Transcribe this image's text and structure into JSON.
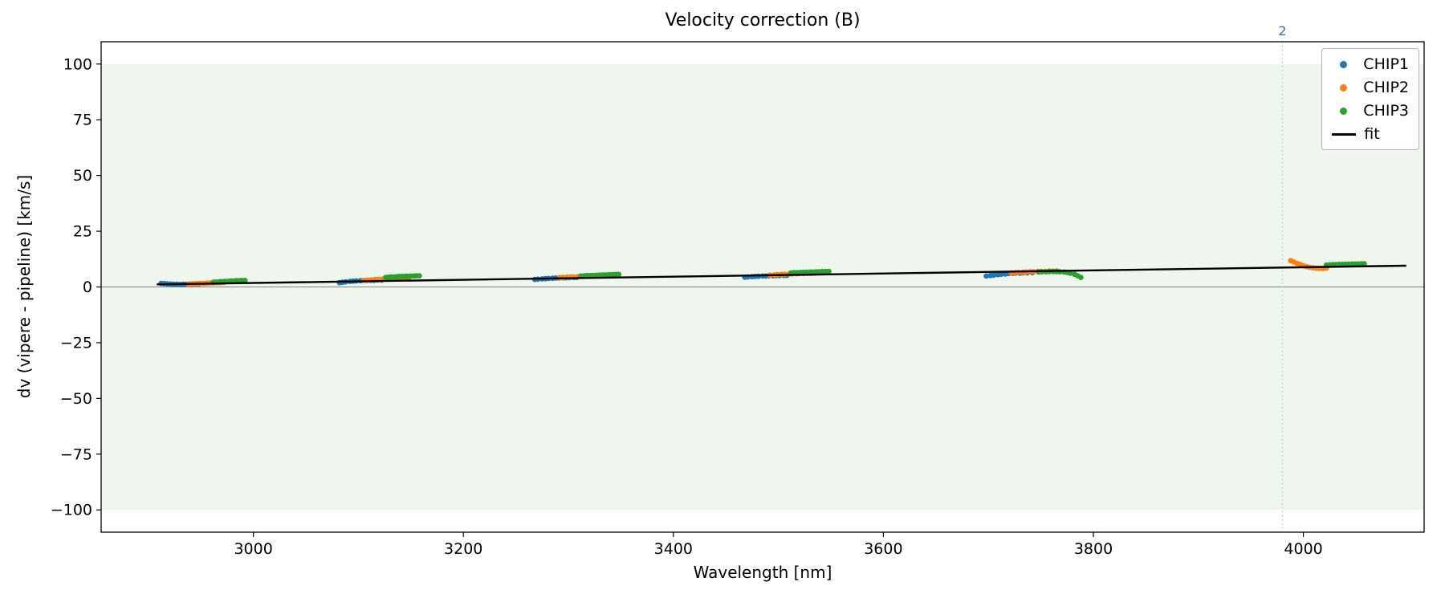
{
  "chart_data": {
    "type": "scatter",
    "title": "Velocity correction (B)",
    "xlabel": "Wavelength [nm]",
    "ylabel": "dv (vipere - pipeline) [km/s]",
    "xlim": [
      2855,
      4115
    ],
    "ylim": [
      -110,
      110
    ],
    "xticks": [
      3000,
      3200,
      3400,
      3600,
      3800,
      4000
    ],
    "yticks": [
      -100,
      -75,
      -50,
      -25,
      0,
      25,
      50,
      75,
      100
    ],
    "grid": false,
    "background_band": {
      "ymin": -100,
      "ymax": 100,
      "color": "#eef6ee"
    },
    "zero_line": {
      "y": 0,
      "color": "#808080"
    },
    "vline": {
      "x": 3980,
      "label": "2",
      "color": "#9ecae1",
      "label_color": "#1f77b4",
      "style": "dotted"
    },
    "legend": {
      "position": "upper right",
      "entries": [
        {
          "label": "CHIP1",
          "color": "#1f77b4",
          "marker": "dot"
        },
        {
          "label": "CHIP2",
          "color": "#ff7f0e",
          "marker": "dot"
        },
        {
          "label": "CHIP3",
          "color": "#2ca02c",
          "marker": "dot"
        },
        {
          "label": "fit",
          "color": "#000000",
          "marker": "line"
        }
      ]
    },
    "series": [
      {
        "name": "CHIP1",
        "color": "#1f77b4",
        "marker": "circle",
        "points": [
          [
            2912,
            1.6
          ],
          [
            2915,
            1.5
          ],
          [
            2918,
            1.4
          ],
          [
            2921,
            1.3
          ],
          [
            2924,
            1.2
          ],
          [
            2927,
            1.2
          ],
          [
            2930,
            1.1
          ],
          [
            2933,
            1.2
          ],
          [
            2936,
            1.2
          ],
          [
            2939,
            1.3
          ],
          [
            2942,
            1.3
          ],
          [
            2945,
            1.4
          ],
          [
            2948,
            1.4
          ],
          [
            3082,
            1.9
          ],
          [
            3085,
            2.1
          ],
          [
            3088,
            2.3
          ],
          [
            3092,
            2.5
          ],
          [
            3095,
            2.6
          ],
          [
            3098,
            2.7
          ],
          [
            3102,
            2.8
          ],
          [
            3105,
            2.9
          ],
          [
            3108,
            2.9
          ],
          [
            3112,
            3.0
          ],
          [
            3115,
            3.0
          ],
          [
            3118,
            3.1
          ],
          [
            3122,
            3.1
          ],
          [
            3268,
            3.4
          ],
          [
            3271,
            3.5
          ],
          [
            3275,
            3.6
          ],
          [
            3278,
            3.7
          ],
          [
            3281,
            3.8
          ],
          [
            3285,
            3.9
          ],
          [
            3288,
            4.0
          ],
          [
            3291,
            4.0
          ],
          [
            3295,
            4.1
          ],
          [
            3298,
            4.1
          ],
          [
            3301,
            4.2
          ],
          [
            3305,
            4.2
          ],
          [
            3308,
            4.3
          ],
          [
            3468,
            4.4
          ],
          [
            3471,
            4.5
          ],
          [
            3475,
            4.6
          ],
          [
            3478,
            4.7
          ],
          [
            3481,
            4.8
          ],
          [
            3485,
            4.9
          ],
          [
            3488,
            4.9
          ],
          [
            3491,
            5.0
          ],
          [
            3495,
            5.0
          ],
          [
            3498,
            5.1
          ],
          [
            3501,
            5.1
          ],
          [
            3505,
            5.2
          ],
          [
            3508,
            5.2
          ],
          [
            3698,
            4.9
          ],
          [
            3702,
            5.1
          ],
          [
            3705,
            5.3
          ],
          [
            3709,
            5.5
          ],
          [
            3712,
            5.7
          ],
          [
            3716,
            5.8
          ],
          [
            3719,
            6.0
          ],
          [
            3723,
            6.1
          ],
          [
            3726,
            6.2
          ],
          [
            3730,
            6.2
          ],
          [
            3733,
            6.3
          ],
          [
            3737,
            6.3
          ],
          [
            3742,
            6.4
          ]
        ]
      },
      {
        "name": "CHIP2",
        "color": "#ff7f0e",
        "marker": "circle",
        "points": [
          [
            2938,
            1.2
          ],
          [
            2941,
            1.3
          ],
          [
            2944,
            1.4
          ],
          [
            2947,
            1.5
          ],
          [
            2950,
            1.6
          ],
          [
            2953,
            1.6
          ],
          [
            2956,
            1.7
          ],
          [
            2959,
            1.8
          ],
          [
            2962,
            1.8
          ],
          [
            2965,
            1.9
          ],
          [
            2968,
            1.9
          ],
          [
            2970,
            2.0
          ],
          [
            2972,
            2.0
          ],
          [
            3105,
            2.9
          ],
          [
            3109,
            3.0
          ],
          [
            3112,
            3.2
          ],
          [
            3116,
            3.3
          ],
          [
            3119,
            3.4
          ],
          [
            3123,
            3.5
          ],
          [
            3126,
            3.6
          ],
          [
            3130,
            3.7
          ],
          [
            3133,
            3.7
          ],
          [
            3137,
            3.8
          ],
          [
            3141,
            3.9
          ],
          [
            3144,
            3.9
          ],
          [
            3148,
            4.0
          ],
          [
            3292,
            4.2
          ],
          [
            3295,
            4.3
          ],
          [
            3299,
            4.4
          ],
          [
            3302,
            4.5
          ],
          [
            3305,
            4.5
          ],
          [
            3309,
            4.6
          ],
          [
            3312,
            4.7
          ],
          [
            3315,
            4.7
          ],
          [
            3319,
            4.8
          ],
          [
            3322,
            4.8
          ],
          [
            3325,
            4.9
          ],
          [
            3329,
            4.9
          ],
          [
            3332,
            5.0
          ],
          [
            3492,
            5.3
          ],
          [
            3496,
            5.4
          ],
          [
            3499,
            5.5
          ],
          [
            3503,
            5.6
          ],
          [
            3506,
            5.7
          ],
          [
            3510,
            5.8
          ],
          [
            3513,
            5.8
          ],
          [
            3517,
            5.9
          ],
          [
            3520,
            6.0
          ],
          [
            3524,
            6.0
          ],
          [
            3528,
            6.1
          ],
          [
            3531,
            6.1
          ],
          [
            3535,
            6.2
          ],
          [
            3722,
            6.3
          ],
          [
            3726,
            6.4
          ],
          [
            3729,
            6.5
          ],
          [
            3733,
            6.6
          ],
          [
            3736,
            6.7
          ],
          [
            3740,
            6.8
          ],
          [
            3743,
            6.8
          ],
          [
            3747,
            6.9
          ],
          [
            3750,
            7.0
          ],
          [
            3754,
            7.0
          ],
          [
            3758,
            7.1
          ],
          [
            3761,
            7.1
          ],
          [
            3765,
            7.2
          ],
          [
            3988,
            11.8
          ],
          [
            3991,
            11.2
          ],
          [
            3994,
            10.6
          ],
          [
            3997,
            10.0
          ],
          [
            4000,
            9.5
          ],
          [
            4003,
            9.1
          ],
          [
            4006,
            8.8
          ],
          [
            4009,
            8.6
          ],
          [
            4012,
            8.4
          ],
          [
            4015,
            8.3
          ],
          [
            4018,
            8.3
          ],
          [
            4020,
            8.4
          ],
          [
            4022,
            8.5
          ]
        ]
      },
      {
        "name": "CHIP3",
        "color": "#2ca02c",
        "marker": "circle",
        "points": [
          [
            2962,
            2.1
          ],
          [
            2964,
            2.2
          ],
          [
            2967,
            2.3
          ],
          [
            2969,
            2.4
          ],
          [
            2972,
            2.5
          ],
          [
            2974,
            2.5
          ],
          [
            2977,
            2.6
          ],
          [
            2979,
            2.7
          ],
          [
            2982,
            2.7
          ],
          [
            2984,
            2.8
          ],
          [
            2987,
            2.8
          ],
          [
            2989,
            2.9
          ],
          [
            2992,
            2.9
          ],
          [
            3126,
            4.3
          ],
          [
            3129,
            4.4
          ],
          [
            3131,
            4.5
          ],
          [
            3134,
            4.5
          ],
          [
            3137,
            4.6
          ],
          [
            3139,
            4.7
          ],
          [
            3142,
            4.7
          ],
          [
            3145,
            4.8
          ],
          [
            3147,
            4.8
          ],
          [
            3150,
            4.9
          ],
          [
            3153,
            4.9
          ],
          [
            3155,
            5.0
          ],
          [
            3158,
            5.0
          ],
          [
            3312,
            4.9
          ],
          [
            3315,
            5.0
          ],
          [
            3318,
            5.1
          ],
          [
            3321,
            5.1
          ],
          [
            3324,
            5.2
          ],
          [
            3327,
            5.3
          ],
          [
            3330,
            5.3
          ],
          [
            3333,
            5.4
          ],
          [
            3336,
            5.4
          ],
          [
            3339,
            5.5
          ],
          [
            3342,
            5.5
          ],
          [
            3345,
            5.6
          ],
          [
            3348,
            5.6
          ],
          [
            3512,
            6.3
          ],
          [
            3515,
            6.4
          ],
          [
            3518,
            6.4
          ],
          [
            3521,
            6.5
          ],
          [
            3524,
            6.6
          ],
          [
            3527,
            6.6
          ],
          [
            3530,
            6.7
          ],
          [
            3533,
            6.7
          ],
          [
            3536,
            6.8
          ],
          [
            3539,
            6.8
          ],
          [
            3542,
            6.9
          ],
          [
            3545,
            6.9
          ],
          [
            3548,
            7.0
          ],
          [
            3748,
            6.7
          ],
          [
            3751,
            6.8
          ],
          [
            3755,
            6.8
          ],
          [
            3758,
            6.9
          ],
          [
            3762,
            6.9
          ],
          [
            3765,
            6.9
          ],
          [
            3768,
            6.8
          ],
          [
            3772,
            6.7
          ],
          [
            3775,
            6.5
          ],
          [
            3778,
            6.2
          ],
          [
            3782,
            5.7
          ],
          [
            3785,
            5.0
          ],
          [
            3788,
            4.3
          ],
          [
            4022,
            9.8
          ],
          [
            4025,
            9.9
          ],
          [
            4028,
            10.0
          ],
          [
            4031,
            10.0
          ],
          [
            4034,
            10.1
          ],
          [
            4037,
            10.1
          ],
          [
            4040,
            10.2
          ],
          [
            4043,
            10.2
          ],
          [
            4046,
            10.3
          ],
          [
            4049,
            10.3
          ],
          [
            4052,
            10.3
          ],
          [
            4055,
            10.4
          ],
          [
            4058,
            10.4
          ]
        ]
      },
      {
        "name": "fit",
        "color": "#000000",
        "type": "line",
        "points": [
          [
            2908,
            1.15
          ],
          [
            4098,
            9.55
          ]
        ]
      }
    ]
  }
}
